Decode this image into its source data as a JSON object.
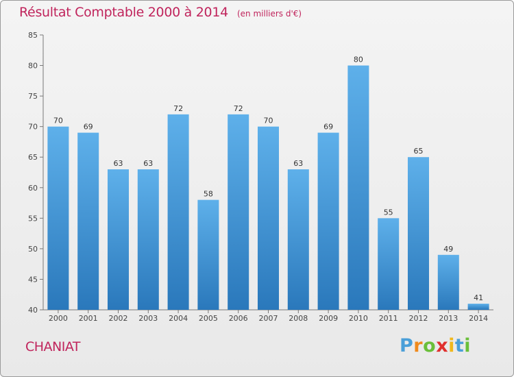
{
  "chart_data": {
    "type": "bar",
    "title": "Résultat Comptable 2000 à 2014",
    "subtitle": "(en milliers d'€)",
    "categories": [
      "2000",
      "2001",
      "2002",
      "2003",
      "2004",
      "2005",
      "2006",
      "2007",
      "2008",
      "2009",
      "2010",
      "2011",
      "2012",
      "2013",
      "2014"
    ],
    "values": [
      70,
      69,
      63,
      63,
      72,
      58,
      72,
      70,
      63,
      69,
      80,
      55,
      65,
      49,
      41
    ],
    "ylim": [
      40,
      85
    ],
    "yticks": [
      40,
      45,
      50,
      55,
      60,
      65,
      70,
      75,
      80,
      85
    ],
    "xlabel": "",
    "ylabel": "",
    "grid": false,
    "colors": {
      "bar_top": "#5eb0ea",
      "bar_bottom": "#2a78bb",
      "title": "#c0245c"
    }
  },
  "footer": {
    "city": "CHANIAT"
  },
  "logo": {
    "letters": [
      {
        "char": "P",
        "color": "#4a9fd8"
      },
      {
        "char": "r",
        "color": "#f08a1c"
      },
      {
        "char": "o",
        "color": "#6abf3a"
      },
      {
        "char": "x",
        "color": "#e0302e"
      },
      {
        "char": "i",
        "color": "#f0b81c"
      },
      {
        "char": "t",
        "color": "#4a9fd8"
      },
      {
        "char": "i",
        "color": "#6abf3a"
      }
    ]
  }
}
